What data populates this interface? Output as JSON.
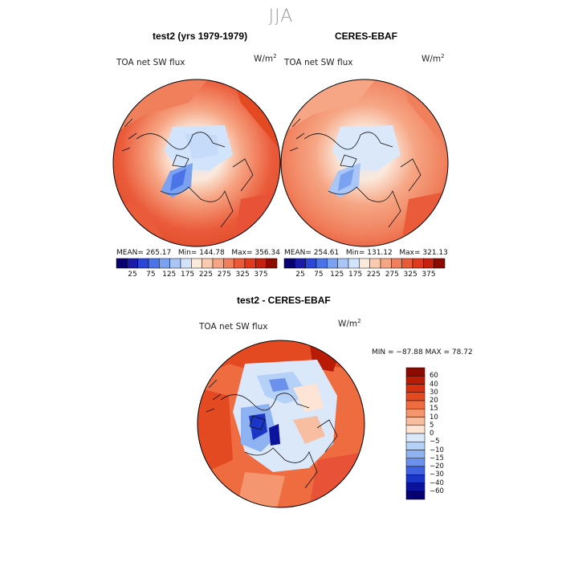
{
  "season_title": "JJA",
  "panels": [
    {
      "title": "test2 (yrs 1979-1979)",
      "variable": "TOA net SW flux",
      "units_base": "W/m",
      "units_exp": "2",
      "stats": {
        "mean_label": "MEAN=",
        "mean": "265.17",
        "min_label": "Min=",
        "min": "144.78",
        "max_label": "Max=",
        "max": "356.34"
      }
    },
    {
      "title": "CERES-EBAF",
      "variable": "TOA net SW flux",
      "units_base": "W/m",
      "units_exp": "2",
      "stats": {
        "mean_label": "MEAN=",
        "mean": "254.61",
        "min_label": "Min=",
        "min": "131.12",
        "max_label": "Max=",
        "max": "321.13"
      }
    }
  ],
  "abs_colorbar": {
    "ticks": [
      "25",
      "75",
      "125",
      "175",
      "225",
      "275",
      "325",
      "375"
    ],
    "colors": [
      "#08006e",
      "#1a1aa8",
      "#2b45d6",
      "#4a74e8",
      "#7aa2f0",
      "#a9c6f6",
      "#d2e4fb",
      "#fbe9dc",
      "#fbcbb0",
      "#f6a684",
      "#f07f5c",
      "#ea5b3a",
      "#de3a1e",
      "#c4220e",
      "#8c0a00"
    ]
  },
  "diff_panel": {
    "title": "test2 - CERES-EBAF",
    "variable": "TOA net SW flux",
    "units_base": "W/m",
    "units_exp": "2",
    "stats": "MIN = −87.88 MAX =  78.72"
  },
  "diff_colorbar": {
    "labels": [
      "60",
      "40",
      "30",
      "20",
      "15",
      "10",
      "5",
      "0",
      "−5",
      "−10",
      "−15",
      "−20",
      "−30",
      "−40",
      "−60"
    ],
    "colors": [
      "#8c0a00",
      "#b81b06",
      "#d5300f",
      "#e44a22",
      "#ef6c40",
      "#f49670",
      "#f8bea2",
      "#fde4d4",
      "#dbe8fa",
      "#b6d1f7",
      "#8fb2f2",
      "#6b91ec",
      "#3f63e0",
      "#1b35c7",
      "#0b139c",
      "#060070"
    ]
  }
}
